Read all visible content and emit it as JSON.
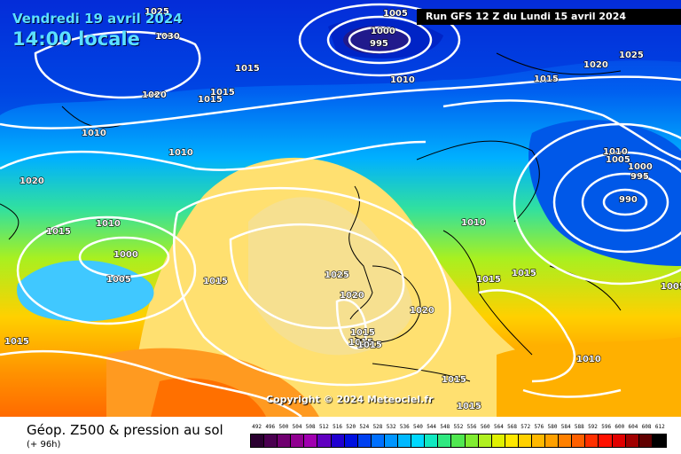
{
  "header": {
    "date": "Vendredi 19 avril 2024",
    "time": "14:00 locale",
    "run": "Run GFS 12 Z du Lundi 15 avril 2024"
  },
  "copyright": "Copyright © 2024 Meteociel.fr",
  "footer": {
    "title": "Géop. Z500 & pression au sol",
    "subtitle": "(+ 96h)"
  },
  "scale": {
    "labels": [
      "492",
      "496",
      "500",
      "504",
      "508",
      "512",
      "516",
      "520",
      "524",
      "528",
      "532",
      "536",
      "540",
      "544",
      "548",
      "552",
      "556",
      "560",
      "564",
      "568",
      "572",
      "576",
      "580",
      "584",
      "588",
      "592",
      "596",
      "600",
      "604",
      "608",
      "612"
    ],
    "colors": [
      "#2a0030",
      "#4a0050",
      "#700070",
      "#900090",
      "#a000b0",
      "#6000c0",
      "#2000d0",
      "#0010e0",
      "#0040f0",
      "#0070ff",
      "#0095ff",
      "#00b8ff",
      "#00d8ff",
      "#10e8c0",
      "#30e880",
      "#50e850",
      "#80ec30",
      "#b0f020",
      "#e0f000",
      "#ffe800",
      "#ffd000",
      "#ffb800",
      "#ffa000",
      "#ff8000",
      "#ff6000",
      "#ff3000",
      "#ff1000",
      "#e00000",
      "#a00000",
      "#600000",
      "#000000"
    ]
  },
  "isobars": [
    "1025",
    "1005",
    "1030",
    "1000",
    "995",
    "1015",
    "1010",
    "1015",
    "1015",
    "1020",
    "1010",
    "1010",
    "1020",
    "1025",
    "1015",
    "1010",
    "1015",
    "1000",
    "1005",
    "1015",
    "1025",
    "1020",
    "1020",
    "1015",
    "1015",
    "1015",
    "1010",
    "1020",
    "1015",
    "1010",
    "1015",
    "1010",
    "1005",
    "1000",
    "995",
    "990",
    "1010",
    "1015",
    "1015",
    "1005",
    "1015"
  ]
}
